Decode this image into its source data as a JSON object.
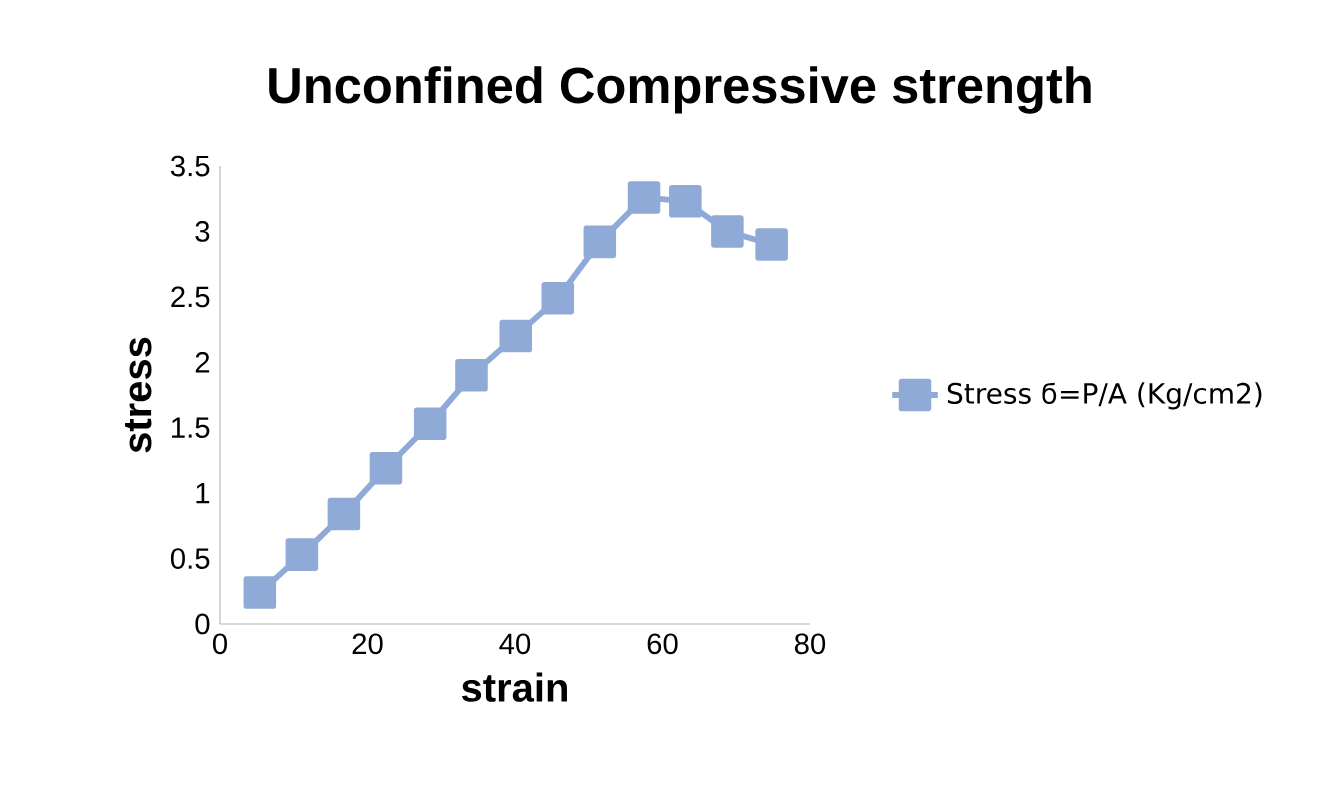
{
  "chart_data": {
    "type": "line",
    "title": "Unconfined Compressive strength",
    "xlabel": "strain",
    "ylabel": "stress",
    "x": [
      5.4,
      11.1,
      16.8,
      22.5,
      28.5,
      34.1,
      40.1,
      45.8,
      51.5,
      57.5,
      63.1,
      68.8,
      74.8
    ],
    "series": [
      {
        "name": "Stress ϭ=P/A (Kg/cm2)",
        "color": "#8faad6",
        "values": [
          0.24,
          0.53,
          0.84,
          1.19,
          1.53,
          1.9,
          2.2,
          2.49,
          2.92,
          3.26,
          3.23,
          3.0,
          2.9
        ]
      }
    ],
    "xlim": [
      0,
      80
    ],
    "xticks": [
      0,
      20,
      40,
      60,
      80
    ],
    "ylim": [
      0,
      3.5
    ],
    "yticks": [
      0,
      0.5,
      1,
      1.5,
      2,
      2.5,
      3,
      3.5
    ],
    "grid": false,
    "legend": "right",
    "marker": "square",
    "line_style": "solid"
  }
}
